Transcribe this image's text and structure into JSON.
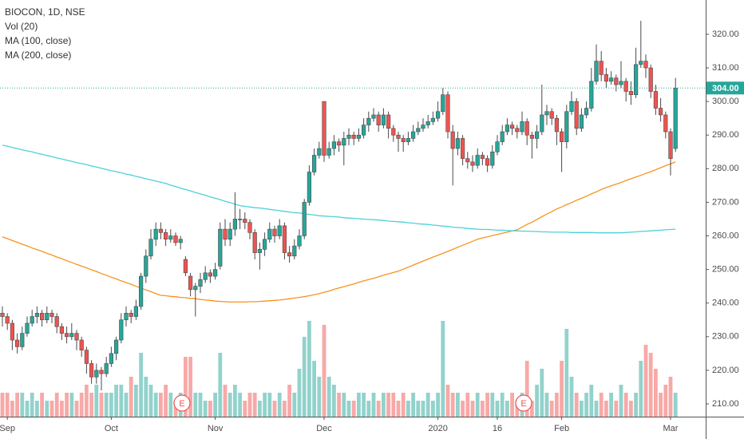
{
  "chart_data": {
    "type": "candlestick",
    "title": "BIOCON, 1D, NSE",
    "categories": [
      null,
      "Sep",
      null,
      null,
      null,
      null,
      null,
      null,
      null,
      null,
      null,
      null,
      null,
      null,
      null,
      null,
      null,
      null,
      null,
      null,
      null,
      null,
      "Oct",
      null,
      null,
      null,
      null,
      null,
      null,
      null,
      null,
      null,
      null,
      null,
      null,
      null,
      null,
      null,
      null,
      null,
      null,
      null,
      null,
      "Nov",
      null,
      null,
      null,
      null,
      null,
      null,
      null,
      null,
      null,
      null,
      null,
      null,
      null,
      null,
      null,
      null,
      null,
      null,
      null,
      null,
      null,
      "Dec",
      null,
      null,
      null,
      null,
      null,
      null,
      null,
      null,
      null,
      null,
      null,
      null,
      null,
      null,
      null,
      null,
      null,
      null,
      null,
      null,
      null,
      null,
      "2020",
      null,
      null,
      null,
      null,
      null,
      null,
      null,
      null,
      null,
      null,
      null,
      "16",
      null,
      null,
      null,
      null,
      null,
      null,
      null,
      null,
      null,
      null,
      null,
      null,
      "Feb",
      null,
      null,
      null,
      null,
      null,
      null,
      null,
      null,
      null,
      null,
      null,
      null,
      null,
      null,
      null,
      null,
      null,
      null,
      null,
      null,
      null,
      "Mar",
      null
    ],
    "open": [
      237,
      236,
      234,
      229,
      227,
      231,
      234,
      236,
      237,
      235,
      237,
      236,
      233,
      231,
      230,
      231,
      229,
      226,
      222,
      218,
      220,
      219,
      222,
      225,
      229,
      235,
      237,
      236,
      239,
      248,
      254,
      259,
      262,
      261,
      259,
      260,
      258,
      253,
      248,
      244,
      245,
      247,
      249,
      248,
      251,
      262,
      259,
      262,
      265,
      265,
      264,
      261,
      255,
      256,
      259,
      262,
      260,
      263,
      255,
      254,
      257,
      260,
      270,
      279,
      284,
      300,
      284,
      286,
      288,
      287,
      289,
      290,
      289,
      290,
      293,
      295,
      296,
      293,
      296,
      292,
      290,
      289,
      288,
      289,
      291,
      292,
      293,
      294,
      295,
      297,
      302,
      291,
      286,
      289,
      283,
      282,
      281,
      284,
      283,
      281,
      285,
      288,
      291,
      293,
      292,
      291,
      294,
      290,
      289,
      291,
      296,
      297,
      295,
      291,
      288,
      297,
      300,
      292,
      296,
      298,
      306,
      312,
      308,
      306,
      307,
      305,
      306,
      303,
      302,
      311,
      312,
      310,
      303,
      298,
      296,
      291,
      286
    ],
    "high": [
      239,
      237,
      235,
      231,
      233,
      236,
      238,
      239,
      238,
      239,
      238,
      237,
      234,
      233,
      234,
      232,
      230,
      227,
      223,
      222,
      221,
      224,
      227,
      230,
      237,
      239,
      238,
      241,
      249,
      256,
      262,
      264,
      264,
      262,
      262,
      261,
      260,
      254,
      249,
      246,
      249,
      251,
      250,
      252,
      264,
      265,
      264,
      273,
      268,
      267,
      265,
      262,
      258,
      261,
      264,
      263,
      265,
      264,
      257,
      259,
      262,
      271,
      281,
      286,
      288,
      300,
      288,
      290,
      289,
      291,
      292,
      291,
      292,
      295,
      297,
      298,
      297,
      298,
      297,
      293,
      291,
      290,
      291,
      293,
      294,
      295,
      296,
      297,
      300,
      304,
      303,
      293,
      291,
      290,
      285,
      284,
      286,
      285,
      284,
      287,
      290,
      293,
      295,
      294,
      293,
      297,
      295,
      291,
      293,
      305,
      299,
      298,
      296,
      292,
      299,
      303,
      301,
      298,
      300,
      310,
      317,
      315,
      310,
      309,
      308,
      312,
      307,
      306,
      316,
      324,
      314,
      311,
      305,
      301,
      297,
      292,
      307
    ],
    "low": [
      233,
      232,
      226,
      225,
      226,
      230,
      233,
      234,
      233,
      234,
      234,
      231,
      229,
      228,
      229,
      226,
      224,
      219,
      216,
      216,
      214,
      218,
      221,
      223,
      228,
      233,
      234,
      235,
      238,
      246,
      253,
      257,
      259,
      257,
      258,
      257,
      256,
      248,
      242,
      236,
      243,
      246,
      246,
      247,
      250,
      257,
      257,
      260,
      262,
      262,
      259,
      253,
      250,
      254,
      258,
      258,
      259,
      253,
      252,
      253,
      256,
      259,
      269,
      278,
      283,
      282,
      283,
      284,
      285,
      281,
      287,
      287,
      288,
      289,
      291,
      294,
      291,
      292,
      289,
      288,
      285,
      285,
      287,
      288,
      290,
      291,
      292,
      293,
      294,
      296,
      289,
      275,
      284,
      281,
      280,
      279,
      280,
      281,
      279,
      280,
      284,
      287,
      290,
      290,
      289,
      290,
      287,
      283,
      286,
      290,
      293,
      293,
      287,
      279,
      286,
      296,
      290,
      291,
      295,
      297,
      305,
      306,
      304,
      305,
      303,
      304,
      300,
      299,
      301,
      310,
      307,
      301,
      296,
      294,
      289,
      278,
      285
    ],
    "close": [
      236,
      234,
      229,
      227,
      231,
      234,
      236,
      237,
      235,
      237,
      236,
      233,
      231,
      230,
      231,
      229,
      226,
      222,
      218,
      220,
      219,
      222,
      225,
      229,
      235,
      237,
      236,
      239,
      248,
      254,
      259,
      262,
      261,
      259,
      260,
      258,
      259,
      249,
      244,
      245,
      247,
      249,
      248,
      250,
      262,
      259,
      262,
      265,
      265,
      264,
      261,
      255,
      256,
      259,
      262,
      260,
      263,
      255,
      254,
      257,
      260,
      270,
      279,
      284,
      286,
      284,
      286,
      288,
      287,
      289,
      290,
      289,
      290,
      293,
      295,
      296,
      293,
      296,
      292,
      290,
      289,
      288,
      289,
      291,
      292,
      293,
      294,
      295,
      297,
      302,
      291,
      286,
      289,
      283,
      282,
      281,
      284,
      283,
      281,
      285,
      288,
      291,
      293,
      292,
      291,
      294,
      290,
      289,
      291,
      296,
      297,
      295,
      291,
      288,
      297,
      300,
      292,
      296,
      298,
      306,
      312,
      308,
      306,
      307,
      305,
      306,
      303,
      302,
      311,
      312,
      310,
      303,
      298,
      296,
      291,
      283,
      304
    ],
    "volume": {
      "name": "Vol (20)",
      "values": [
        3,
        3,
        2,
        3,
        3,
        2,
        3,
        2,
        3,
        2,
        2,
        3,
        2,
        3,
        3,
        2,
        3,
        4,
        3,
        4,
        3,
        3,
        3,
        4,
        4,
        3,
        5,
        4,
        8,
        5,
        4,
        3,
        3,
        4,
        3,
        2,
        3,
        7.5,
        7.5,
        3,
        3,
        2,
        2,
        3,
        8,
        4,
        3,
        4,
        3,
        2,
        3,
        3,
        2,
        3,
        3,
        2,
        3,
        2,
        4,
        3,
        6,
        10,
        12,
        7,
        5,
        11.5,
        5,
        4,
        3,
        3,
        2,
        2,
        3,
        3,
        2,
        3,
        2,
        3,
        3,
        3,
        2,
        3,
        2,
        3,
        2,
        2,
        3,
        2,
        3,
        12,
        4,
        3,
        3,
        2,
        3,
        2,
        3,
        2,
        3,
        3,
        2,
        3,
        2,
        3,
        2,
        3,
        7,
        2,
        4,
        6,
        3,
        2,
        3,
        7,
        11,
        5,
        3,
        2,
        3,
        4,
        2,
        3,
        2,
        3,
        2,
        4,
        3,
        2,
        3,
        7,
        9,
        8,
        6,
        3,
        4,
        5,
        3
      ]
    },
    "series": [
      {
        "name": "MA (100, close)",
        "color": "#f7931e",
        "values": [
          259.7,
          259.2,
          258.6,
          258.1,
          257.5,
          257.0,
          256.4,
          255.9,
          255.4,
          254.8,
          254.3,
          253.7,
          253.2,
          252.6,
          252.1,
          251.5,
          251.0,
          250.5,
          249.9,
          249.4,
          248.8,
          248.3,
          247.7,
          247.2,
          246.6,
          246.1,
          245.6,
          245.0,
          244.5,
          243.9,
          243.4,
          242.8,
          242.3,
          242.2,
          242.0,
          241.9,
          241.7,
          241.6,
          241.4,
          241.3,
          241.1,
          240.9,
          240.8,
          240.6,
          240.5,
          240.4,
          240.3,
          240.3,
          240.3,
          240.3,
          240.4,
          240.4,
          240.5,
          240.6,
          240.7,
          240.8,
          240.9,
          241.1,
          241.3,
          241.5,
          241.7,
          241.9,
          242.2,
          242.5,
          242.8,
          243.2,
          243.6,
          244.1,
          244.5,
          244.9,
          245.3,
          245.7,
          246.2,
          246.6,
          247.0,
          247.4,
          247.8,
          248.3,
          248.7,
          249.1,
          249.5,
          250.1,
          250.7,
          251.3,
          251.9,
          252.5,
          253.1,
          253.7,
          254.2,
          254.8,
          255.4,
          256.0,
          256.6,
          257.2,
          257.8,
          258.4,
          259.0,
          259.4,
          259.7,
          260.1,
          260.4,
          260.8,
          261.1,
          261.5,
          261.8,
          262.6,
          263.4,
          264.1,
          264.9,
          265.7,
          266.5,
          267.2,
          268.0,
          268.6,
          269.3,
          269.9,
          270.6,
          271.2,
          271.8,
          272.5,
          273.1,
          273.8,
          274.4,
          274.9,
          275.4,
          275.9,
          276.5,
          277.0,
          277.5,
          278.0,
          278.6,
          279.1,
          279.7,
          280.3,
          280.9,
          281.4,
          282.0
        ]
      },
      {
        "name": "MA (200, close)",
        "color": "#4dd0d8",
        "values": [
          287.0,
          286.7,
          286.3,
          286.0,
          285.6,
          285.3,
          285.0,
          284.6,
          284.3,
          283.9,
          283.6,
          283.2,
          282.9,
          282.5,
          282.2,
          281.8,
          281.5,
          281.2,
          280.8,
          280.5,
          280.1,
          279.8,
          279.4,
          279.1,
          278.8,
          278.4,
          278.1,
          277.7,
          277.4,
          277.0,
          276.7,
          276.3,
          276.0,
          275.6,
          275.1,
          274.7,
          274.2,
          273.8,
          273.4,
          272.9,
          272.5,
          272.1,
          271.6,
          271.2,
          270.8,
          270.3,
          269.9,
          269.4,
          269.0,
          268.8,
          268.6,
          268.4,
          268.3,
          268.1,
          267.9,
          267.7,
          267.5,
          267.3,
          267.1,
          266.9,
          266.8,
          266.6,
          266.4,
          266.2,
          266.0,
          265.9,
          265.8,
          265.7,
          265.6,
          265.4,
          265.3,
          265.2,
          265.1,
          265.0,
          264.9,
          264.8,
          264.7,
          264.6,
          264.4,
          264.3,
          264.2,
          264.1,
          263.9,
          263.8,
          263.6,
          263.5,
          263.4,
          263.2,
          263.1,
          262.9,
          262.8,
          262.6,
          262.5,
          262.4,
          262.2,
          262.1,
          262.0,
          261.9,
          261.9,
          261.8,
          261.7,
          261.7,
          261.6,
          261.5,
          261.5,
          261.4,
          261.4,
          261.3,
          261.3,
          261.2,
          261.2,
          261.1,
          261.1,
          261.1,
          261.1,
          261.0,
          261.0,
          261.0,
          261.0,
          261.0,
          260.9,
          260.9,
          260.9,
          260.9,
          260.9,
          260.9,
          261.0,
          261.1,
          261.2,
          261.3,
          261.4,
          261.5,
          261.6,
          261.7,
          261.8,
          261.9,
          262.0
        ]
      }
    ],
    "ylim": [
      206.2,
      330.2
    ],
    "yticks": [
      {
        "value": 210,
        "label": "210.00"
      },
      {
        "value": 220,
        "label": "220.00"
      },
      {
        "value": 230,
        "label": "230.00"
      },
      {
        "value": 240,
        "label": "240.00"
      },
      {
        "value": 250,
        "label": "250.00"
      },
      {
        "value": 260,
        "label": "260.00"
      },
      {
        "value": 270,
        "label": "270.00"
      },
      {
        "value": 280,
        "label": "280.00"
      },
      {
        "value": 290,
        "label": "290.00"
      },
      {
        "value": 300,
        "label": "300.00"
      },
      {
        "value": 310,
        "label": "310.00"
      },
      {
        "value": 320,
        "label": "320.00"
      }
    ],
    "last_price": {
      "value": 304,
      "label": "304.00"
    },
    "up_color": "#26a69a",
    "down_color": "#ef5350",
    "events": [
      "E",
      "E"
    ]
  }
}
